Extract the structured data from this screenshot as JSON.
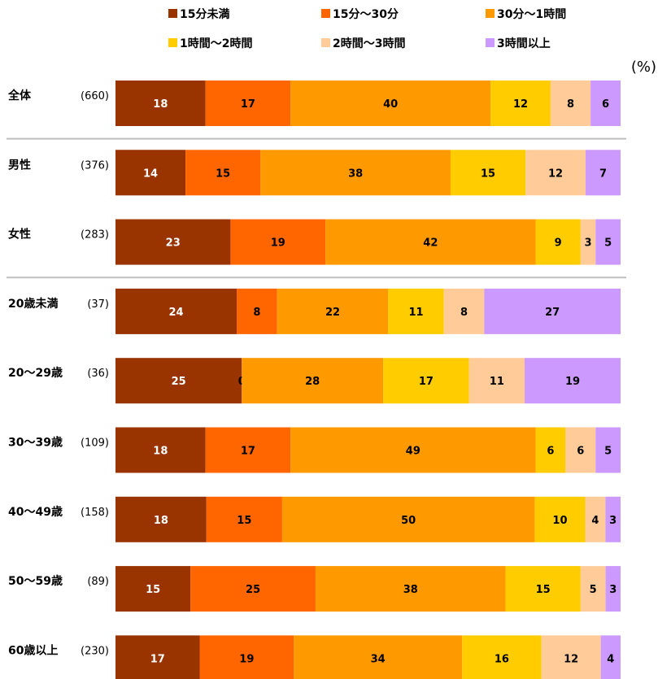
{
  "chart_data": {
    "type": "bar",
    "orientation": "horizontal",
    "stacked": true,
    "unit": "(%)",
    "xlim": [
      0,
      100
    ],
    "legend_position": "top",
    "series": [
      {
        "name": "15分未満",
        "color": "#993300",
        "label_color": "#ffffff",
        "values": [
          18,
          14,
          23,
          24,
          25,
          18,
          18,
          15,
          17
        ]
      },
      {
        "name": "15分〜30分",
        "color": "#ff6600",
        "label_color": "#000000",
        "values": [
          17,
          15,
          19,
          8,
          0,
          17,
          15,
          25,
          19
        ]
      },
      {
        "name": "30分〜1時間",
        "color": "#ff9900",
        "label_color": "#000000",
        "values": [
          40,
          38,
          42,
          22,
          28,
          49,
          50,
          38,
          34
        ]
      },
      {
        "name": "1時間〜2時間",
        "color": "#ffcc00",
        "label_color": "#000000",
        "values": [
          12,
          15,
          9,
          11,
          17,
          6,
          10,
          15,
          16
        ]
      },
      {
        "name": "2時間〜3時間",
        "color": "#ffcc99",
        "label_color": "#000000",
        "values": [
          8,
          12,
          3,
          8,
          11,
          6,
          4,
          5,
          12
        ]
      },
      {
        "name": "3時間以上",
        "color": "#cc99ff",
        "label_color": "#000000",
        "values": [
          6,
          7,
          5,
          27,
          19,
          5,
          3,
          3,
          4
        ]
      }
    ],
    "categories": [
      {
        "label": "全体",
        "n": "(660)"
      },
      {
        "label": "男性",
        "n": "(376)"
      },
      {
        "label": "女性",
        "n": "(283)"
      },
      {
        "label": "20歳未満",
        "n": "(37)"
      },
      {
        "label": "20〜29歳",
        "n": "(36)"
      },
      {
        "label": "30〜39歳",
        "n": "(109)"
      },
      {
        "label": "40〜49歳",
        "n": "(158)"
      },
      {
        "label": "50〜59歳",
        "n": "(89)"
      },
      {
        "label": "60歳以上",
        "n": "(230)"
      }
    ],
    "group_separators_after": [
      0,
      2
    ]
  }
}
